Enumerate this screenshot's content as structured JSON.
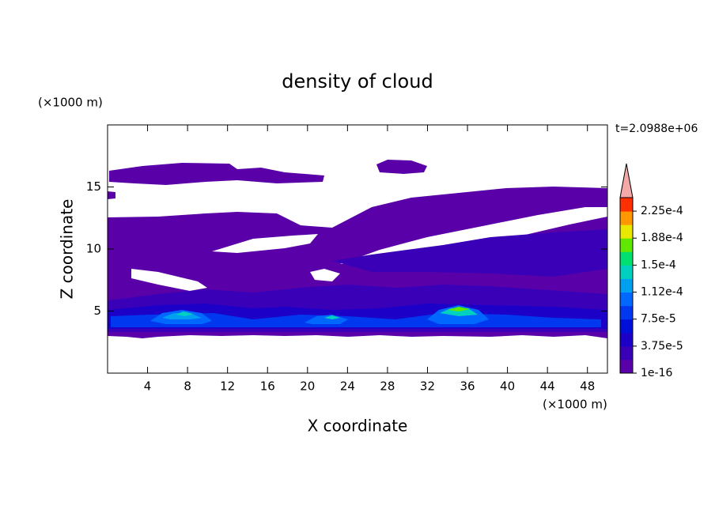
{
  "chart_data": {
    "type": "contour",
    "title": "density of cloud",
    "x_label": "X coordinate",
    "y_label": "Z coordinate",
    "x_unit": "(×1000 m)",
    "y_unit": "(×1000 m)",
    "time_label": "t=2.0988e+06",
    "xlim": [
      0,
      50
    ],
    "ylim": [
      0,
      20
    ],
    "xticks": [
      4,
      8,
      12,
      16,
      20,
      24,
      28,
      32,
      36,
      40,
      44,
      48
    ],
    "yticks": [
      5,
      10,
      15
    ],
    "colorbar": {
      "clim": [
        1e-16,
        0.00024375
      ],
      "ticks": [
        {
          "value": 1e-16,
          "label": "1e-16"
        },
        {
          "value": 3.75e-05,
          "label": "3.75e-5"
        },
        {
          "value": 7.5e-05,
          "label": "7.5e-5"
        },
        {
          "value": 0.0001125,
          "label": "1.12e-4"
        },
        {
          "value": 0.00015,
          "label": "1.5e-4"
        },
        {
          "value": 0.0001875,
          "label": "1.88e-4"
        },
        {
          "value": 0.000225,
          "label": "2.25e-4"
        }
      ],
      "colors": [
        "#5a00a8",
        "#3a00b8",
        "#1c00c8",
        "#0010d8",
        "#0038f0",
        "#0068ff",
        "#00a0f0",
        "#00d0c0",
        "#00e070",
        "#60e800",
        "#e8e800",
        "#ff9800",
        "#ff3000"
      ],
      "overflow_color": "#f4a8a8"
    }
  }
}
